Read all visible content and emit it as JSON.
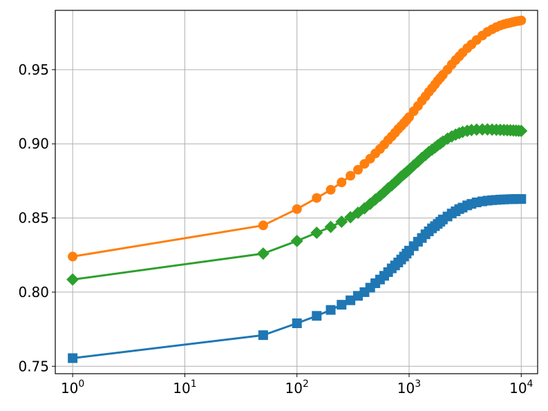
{
  "chart_data": {
    "type": "line",
    "title": "",
    "xlabel": "",
    "ylabel": "",
    "xscale": "log",
    "xlim": [
      0.7,
      14000
    ],
    "ylim": [
      0.745,
      0.99
    ],
    "grid": true,
    "x_ticks": [
      {
        "base": "10",
        "exp": "0"
      },
      {
        "base": "10",
        "exp": "1"
      },
      {
        "base": "10",
        "exp": "2"
      },
      {
        "base": "10",
        "exp": "3"
      },
      {
        "base": "10",
        "exp": "4"
      }
    ],
    "y_ticks": [
      "0.75",
      "0.80",
      "0.85",
      "0.90",
      "0.95"
    ],
    "series": [
      {
        "color": "#1f77b4",
        "marker": "square",
        "x": [
          1,
          50,
          100,
          150,
          200,
          250,
          300,
          350,
          400,
          450,
          500,
          550,
          600,
          650,
          700,
          750,
          800,
          850,
          900,
          950,
          1000,
          1100,
          1200,
          1300,
          1400,
          1500,
          1600,
          1700,
          1800,
          1900,
          2000,
          2200,
          2400,
          2600,
          2800,
          3000,
          3300,
          3600,
          4000,
          4500,
          5000,
          5500,
          6000,
          6500,
          7000,
          7500,
          8000,
          8500,
          9000,
          9500,
          10000
        ],
        "y": [
          0.7555,
          0.771,
          0.779,
          0.784,
          0.788,
          0.7915,
          0.7945,
          0.7975,
          0.8,
          0.803,
          0.806,
          0.8085,
          0.811,
          0.8135,
          0.816,
          0.818,
          0.82,
          0.822,
          0.824,
          0.826,
          0.828,
          0.831,
          0.834,
          0.8365,
          0.839,
          0.841,
          0.843,
          0.8445,
          0.846,
          0.8475,
          0.849,
          0.851,
          0.853,
          0.8545,
          0.856,
          0.857,
          0.8585,
          0.8595,
          0.8605,
          0.8612,
          0.8617,
          0.862,
          0.8622,
          0.8624,
          0.8625,
          0.8626,
          0.8627,
          0.8627,
          0.8628,
          0.8628,
          0.8628
        ]
      },
      {
        "color": "#ff7f0e",
        "marker": "circle",
        "x": [
          1,
          50,
          100,
          150,
          200,
          250,
          300,
          350,
          400,
          450,
          500,
          550,
          600,
          650,
          700,
          750,
          800,
          850,
          900,
          950,
          1000,
          1100,
          1200,
          1300,
          1400,
          1500,
          1600,
          1700,
          1800,
          1900,
          2000,
          2200,
          2400,
          2600,
          2800,
          3000,
          3300,
          3600,
          4000,
          4500,
          5000,
          5500,
          6000,
          6500,
          7000,
          7500,
          8000,
          8500,
          9000,
          9500,
          10000
        ],
        "y": [
          0.824,
          0.845,
          0.856,
          0.8635,
          0.869,
          0.874,
          0.8785,
          0.8825,
          0.8865,
          0.89,
          0.8935,
          0.8965,
          0.8995,
          0.9025,
          0.905,
          0.9075,
          0.91,
          0.912,
          0.914,
          0.916,
          0.918,
          0.922,
          0.9255,
          0.929,
          0.932,
          0.935,
          0.9375,
          0.94,
          0.9425,
          0.9445,
          0.9465,
          0.95,
          0.9535,
          0.9565,
          0.959,
          0.9615,
          0.9645,
          0.967,
          0.97,
          0.973,
          0.9755,
          0.9772,
          0.9787,
          0.9798,
          0.9806,
          0.9812,
          0.9817,
          0.9822,
          0.9826,
          0.9829,
          0.9832
        ]
      },
      {
        "color": "#2ca02c",
        "marker": "diamond",
        "x": [
          1,
          50,
          100,
          150,
          200,
          250,
          300,
          350,
          400,
          450,
          500,
          550,
          600,
          650,
          700,
          750,
          800,
          850,
          900,
          950,
          1000,
          1100,
          1200,
          1300,
          1400,
          1500,
          1600,
          1700,
          1800,
          1900,
          2000,
          2200,
          2400,
          2600,
          2800,
          3000,
          3300,
          3600,
          4000,
          4500,
          5000,
          5500,
          6000,
          6500,
          7000,
          7500,
          8000,
          8500,
          9000,
          9500,
          10000
        ],
        "y": [
          0.8085,
          0.826,
          0.8345,
          0.84,
          0.844,
          0.8475,
          0.8505,
          0.8535,
          0.8565,
          0.8595,
          0.8625,
          0.865,
          0.8675,
          0.87,
          0.872,
          0.874,
          0.876,
          0.878,
          0.8795,
          0.881,
          0.8825,
          0.8855,
          0.888,
          0.8905,
          0.8925,
          0.8945,
          0.896,
          0.8975,
          0.899,
          0.9003,
          0.9015,
          0.9035,
          0.905,
          0.9062,
          0.9072,
          0.908,
          0.9088,
          0.9093,
          0.9096,
          0.9097,
          0.9097,
          0.9096,
          0.9095,
          0.9094,
          0.9093,
          0.9092,
          0.9091,
          0.909,
          0.9089,
          0.9088,
          0.9087
        ]
      }
    ]
  }
}
